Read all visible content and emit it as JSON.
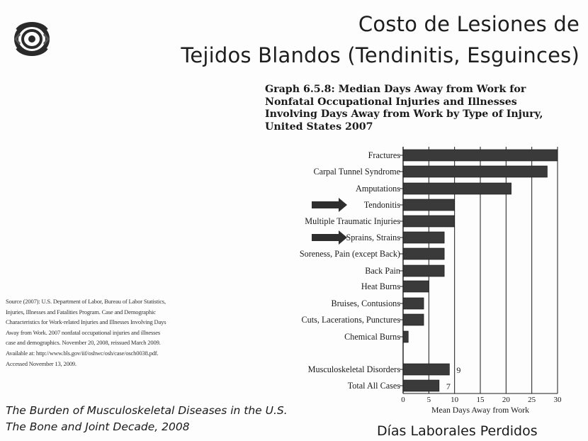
{
  "slide": {
    "title_line1": "Costo de Lesiones de",
    "title_line2": "Tejidos Blandos (Tendinitis, Esguinces)",
    "logo_icon": "bone-joint-decade-logo-icon",
    "source_lines": [
      "Source (2007): U.S. Department of Labor, Bureau of Labor Statistics,",
      "Injuries, Illnesses and Fatalities Program. Case and Demographic",
      "Characteristics for Work-related Injuries and Illnesses Involving Days",
      "Away from Work. 2007 nonfatal occupational injuries and illnesses",
      "case and demographics. November 20, 2008, reissued March 2009.",
      "Available at: http://www.bls.gov/iif/oshwc/osh/case/osch0038.pdf.",
      "Accessed November 13, 2009."
    ],
    "burden_line1": "The Burden of Musculoskeletal Diseases in the U.S.",
    "burden_line2": "The Bone and Joint Decade, 2008",
    "footer_label": "Días Laborales Perdidos"
  },
  "chart_data": {
    "type": "bar",
    "orientation": "horizontal",
    "title_lines": [
      "Graph 6.5.8: Median Days Away from Work for",
      "Nonfatal Occupational Injuries and Illnesses",
      "Involving Days Away from Work by Type of Injury,",
      "United States 2007"
    ],
    "xlabel": "Mean Days Away from Work",
    "xlim": [
      0,
      30
    ],
    "xticks": [
      "0",
      "5",
      "10",
      "15",
      "20",
      "25",
      "30"
    ],
    "grid": true,
    "bar_color": "#3a3a3a",
    "arrow_color": "#2e2e2e",
    "categories": [
      "Fractures",
      "Carpal Tunnel Syndrome",
      "Amputations",
      "Tendonitis",
      "Multiple Traumatic Injuries",
      "Sprains, Strains",
      "Soreness, Pain (except Back)",
      "Back Pain",
      "Heat Burns",
      "Bruises, Contusions",
      "Cuts, Lacerations, Punctures",
      "Chemical Burns",
      "Musculoskeletal Disorders",
      "Total All Cases"
    ],
    "values": [
      30,
      28,
      21,
      10,
      10,
      8,
      8,
      8,
      5,
      4,
      4,
      1,
      9,
      7
    ],
    "data_labels": [
      "",
      "",
      "",
      "",
      "",
      "",
      "",
      "",
      "",
      "",
      "",
      "",
      "9",
      "7"
    ],
    "highlighted": [
      "Tendonitis",
      "Sprains, Strains"
    ]
  }
}
